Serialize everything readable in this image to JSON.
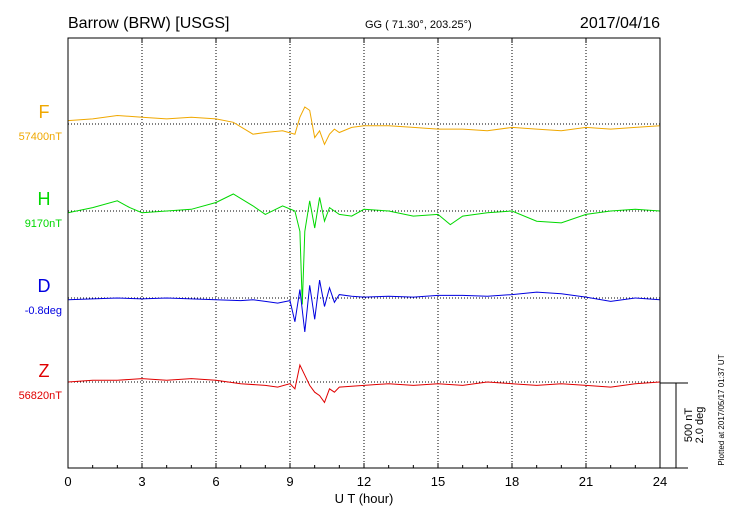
{
  "header": {
    "title": "Barrow (BRW)  [USGS]",
    "coords": "GG ( 71.30°, 203.25°)",
    "date": "2017/04/16"
  },
  "chart_data": {
    "type": "line",
    "title": "Barrow (BRW)  [USGS]",
    "xlabel": "U T (hour)",
    "xlim": [
      0,
      24
    ],
    "xticks": [
      "0",
      "3",
      "6",
      "9",
      "12",
      "15",
      "18",
      "21",
      "24"
    ],
    "grid": true,
    "scale_label_nt": "500 nT",
    "scale_label_deg": "2.0 deg",
    "plotted_note": "Plotted at 2017/05/17 01:37 UT",
    "series": [
      {
        "name": "F",
        "baseline_label": "57400nT",
        "color": "#f0a800",
        "x": [
          0,
          1,
          2,
          3,
          4,
          5,
          6,
          6.7,
          7.5,
          8,
          8.7,
          9.2,
          9.4,
          9.6,
          9.8,
          10,
          10.2,
          10.4,
          10.6,
          10.8,
          11,
          11.5,
          12,
          13,
          14,
          15,
          16,
          17,
          18,
          19,
          20,
          21,
          22,
          23,
          24
        ],
        "y": [
          20,
          30,
          50,
          40,
          30,
          40,
          30,
          10,
          -60,
          -50,
          -40,
          -60,
          40,
          100,
          80,
          -80,
          -40,
          -120,
          -60,
          -30,
          -50,
          -20,
          -10,
          -10,
          -20,
          -30,
          -30,
          -40,
          -20,
          -30,
          -40,
          -20,
          -30,
          -20,
          -10
        ]
      },
      {
        "name": "H",
        "baseline_label": "9170nT",
        "color": "#00d800",
        "x": [
          0,
          1,
          2,
          2.5,
          3,
          4,
          5,
          6,
          6.7,
          7.5,
          8,
          8.7,
          9.2,
          9.4,
          9.5,
          9.6,
          9.8,
          10,
          10.2,
          10.4,
          10.6,
          11,
          11.5,
          12,
          13,
          14,
          15,
          15.5,
          16,
          17,
          18,
          19,
          20,
          21,
          22,
          23,
          24
        ],
        "y": [
          -10,
          20,
          60,
          20,
          -10,
          0,
          10,
          50,
          100,
          30,
          -20,
          30,
          0,
          -120,
          -550,
          -120,
          60,
          -100,
          80,
          -60,
          20,
          -20,
          -30,
          10,
          0,
          -30,
          -20,
          -80,
          -30,
          -10,
          0,
          -60,
          -70,
          -20,
          0,
          10,
          0
        ]
      },
      {
        "name": "D",
        "baseline_label": "-0.8deg",
        "color": "#0000e0",
        "x": [
          0,
          1,
          2,
          3,
          4,
          5,
          6,
          7,
          7.5,
          8,
          8.5,
          9,
          9.2,
          9.4,
          9.6,
          9.8,
          10,
          10.2,
          10.4,
          10.6,
          10.8,
          11,
          11.5,
          12,
          13,
          14,
          15,
          16,
          17,
          18,
          19,
          20,
          21,
          22,
          23,
          24
        ],
        "y": [
          -0.08,
          -0.04,
          0,
          -0.04,
          0,
          -0.04,
          -0.08,
          -0.12,
          -0.08,
          -0.16,
          -0.24,
          -0.12,
          -1.12,
          0.4,
          -1.6,
          0.6,
          -1.0,
          0.84,
          -0.4,
          0.48,
          -0.2,
          0.16,
          0.08,
          0.04,
          0.08,
          0.04,
          0.12,
          0.12,
          0.08,
          0.16,
          0.28,
          0.2,
          0.04,
          -0.16,
          0,
          -0.08
        ]
      },
      {
        "name": "Z",
        "baseline_label": "56820nT",
        "color": "#e00000",
        "x": [
          0,
          1,
          2,
          3,
          4,
          5,
          6,
          7,
          8,
          8.5,
          9,
          9.2,
          9.4,
          9.6,
          9.8,
          10,
          10.2,
          10.4,
          10.6,
          10.8,
          11,
          12,
          13,
          14,
          15,
          16,
          17,
          18,
          19,
          20,
          21,
          22,
          23,
          24
        ],
        "y": [
          0,
          10,
          10,
          20,
          10,
          20,
          10,
          -10,
          -20,
          -30,
          -10,
          -40,
          100,
          40,
          -20,
          -60,
          -80,
          -120,
          -40,
          -60,
          -30,
          -20,
          -10,
          -20,
          -10,
          -20,
          0,
          -10,
          -20,
          -10,
          -20,
          -30,
          -10,
          0
        ]
      }
    ]
  }
}
